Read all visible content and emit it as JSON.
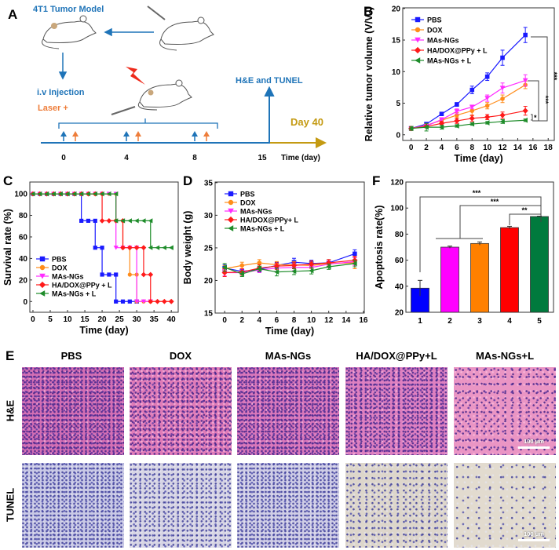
{
  "panel_labels": {
    "A": "A",
    "B": "B",
    "C": "C",
    "D": "D",
    "E": "E",
    "F": "F"
  },
  "panel_a": {
    "model_label": "4T1 Tumor Model",
    "injection_label": "i.v Injection",
    "laser_label": "Laser +",
    "endpoint_label": "H&E and TUNEL",
    "final_day_label": "Day 40",
    "time_ticks": [
      "0",
      "4",
      "8",
      "15"
    ],
    "time_axis_label": "Time (day)",
    "colors": {
      "blue": "#1f74b8",
      "orange": "#ee7d3a",
      "gold": "#c49a12"
    }
  },
  "chart_data": [
    {
      "id": "B",
      "type": "line",
      "xlabel": "Time (day)",
      "ylabel": "Relative tumor volume (V/V₀)",
      "xlim": [
        -1.1,
        18.8
      ],
      "ylim": [
        -0.9,
        20.1
      ],
      "xticks": [
        0,
        2,
        4,
        6,
        8,
        10,
        12,
        14,
        16,
        18
      ],
      "yticks": [
        0,
        5,
        10,
        15,
        20
      ],
      "x": [
        0,
        2,
        4,
        6,
        8,
        10,
        12,
        15
      ],
      "series": [
        {
          "name": "PBS",
          "color": "#1a1aff",
          "marker": "square",
          "values": [
            1,
            1.7,
            3.3,
            4.8,
            7.1,
            9.2,
            12.2,
            15.8
          ],
          "err": [
            0.3,
            0.2,
            0.2,
            0.3,
            0.6,
            0.6,
            1.2,
            1.2
          ]
        },
        {
          "name": "DOX",
          "color": "#ff8c1a",
          "marker": "circle",
          "values": [
            1,
            1.5,
            2.3,
            3.1,
            3.8,
            4.6,
            5.7,
            7.9
          ],
          "err": [
            0.3,
            0.2,
            0.3,
            0.4,
            0.8,
            0.5,
            0.6,
            0.6
          ]
        },
        {
          "name": "MAs-NGs",
          "color": "#ff2bff",
          "marker": "tri-down",
          "values": [
            1,
            1.4,
            2.4,
            3.7,
            4.4,
            5.8,
            7.4,
            8.6
          ],
          "err": [
            0.3,
            0.2,
            0.3,
            0.4,
            0.3,
            0.5,
            0.8,
            0.9
          ]
        },
        {
          "name": "HA/DOX@PPy + L",
          "color": "#ff1a1a",
          "marker": "diamond",
          "values": [
            1,
            1.3,
            1.8,
            2.2,
            2.6,
            2.8,
            3.1,
            3.8
          ],
          "err": [
            0.3,
            0.2,
            0.3,
            0.4,
            0.5,
            0.4,
            0.5,
            0.7
          ]
        },
        {
          "name": "MAs-NGs + L",
          "color": "#1e8c2a",
          "marker": "tri-left",
          "values": [
            1,
            1.2,
            1.2,
            1.4,
            1.7,
            1.9,
            2.1,
            2.3
          ],
          "err": [
            0.3,
            0.6,
            0.3,
            0.2,
            0.2,
            0.2,
            0.3,
            0.2
          ]
        }
      ],
      "legend": "top-left",
      "annotations": [
        "***",
        "***",
        "*"
      ]
    },
    {
      "id": "C",
      "type": "line",
      "style": "step",
      "xlabel": "Time (day)",
      "ylabel": "Survival rate (%)",
      "xlim": [
        -0.9,
        42
      ],
      "ylim": [
        -10,
        111
      ],
      "xticks": [
        0,
        5,
        10,
        15,
        20,
        25,
        30,
        35,
        40
      ],
      "yticks": [
        0,
        20,
        40,
        60,
        80,
        100
      ],
      "series": [
        {
          "name": "PBS",
          "color": "#1a1aff",
          "marker": "square",
          "x": [
            0,
            14,
            18,
            20,
            24,
            30
          ],
          "values": [
            100,
            75,
            50,
            25,
            0,
            0
          ]
        },
        {
          "name": "DOX",
          "color": "#ff8c1a",
          "marker": "circle",
          "x": [
            0,
            24,
            26,
            28,
            30,
            34
          ],
          "values": [
            100,
            75,
            50,
            25,
            0,
            0
          ]
        },
        {
          "name": "MAs-NGs",
          "color": "#ff2bff",
          "marker": "tri-down",
          "x": [
            0,
            24,
            30,
            34
          ],
          "values": [
            100,
            50,
            0,
            0
          ]
        },
        {
          "name": "HA/DOX@PPy + L",
          "color": "#ff1a1a",
          "marker": "diamond",
          "x": [
            0,
            20,
            26,
            32,
            34,
            40
          ],
          "values": [
            100,
            75,
            50,
            25,
            0,
            0
          ]
        },
        {
          "name": "MAs-NGs + L",
          "color": "#1e8c2a",
          "marker": "tri-left",
          "x": [
            0,
            24,
            34,
            40
          ],
          "values": [
            100,
            75,
            50,
            50
          ]
        }
      ],
      "legend": "bottom-left"
    },
    {
      "id": "D",
      "type": "line",
      "xlabel": "Time (day)",
      "ylabel": "Body weight (g)",
      "xlim": [
        -1.1,
        16.1
      ],
      "ylim": [
        15,
        35.1
      ],
      "xticks": [
        0,
        2,
        4,
        6,
        8,
        10,
        12,
        14,
        16
      ],
      "yticks": [
        15,
        20,
        25,
        30,
        35
      ],
      "x": [
        0,
        2,
        4,
        6,
        8,
        10,
        12,
        15
      ],
      "series": [
        {
          "name": "PBS",
          "color": "#1a1aff",
          "marker": "square",
          "values": [
            21.9,
            21.4,
            21.7,
            22.3,
            22.8,
            22.6,
            22.7,
            24.1
          ],
          "err": [
            0.5,
            0.4,
            0.4,
            0.5,
            0.6,
            0.5,
            0.5,
            0.6
          ]
        },
        {
          "name": "DOX",
          "color": "#ff8c1a",
          "marker": "circle",
          "values": [
            21.8,
            22.3,
            22.7,
            22.4,
            22.4,
            22.3,
            22.6,
            22.7
          ],
          "err": [
            0.5,
            0.5,
            0.5,
            0.5,
            0.5,
            0.5,
            0.6,
            0.9
          ]
        },
        {
          "name": "MAs-NGs",
          "color": "#ff2bff",
          "marker": "tri-down",
          "values": [
            21.2,
            21.2,
            21.6,
            21.9,
            22.0,
            22.0,
            22.5,
            22.9
          ],
          "err": [
            0.5,
            0.4,
            0.4,
            0.5,
            0.5,
            0.5,
            0.5,
            0.6
          ]
        },
        {
          "name": "HA/DOX@PPy+ L",
          "color": "#ff1a1a",
          "marker": "diamond",
          "values": [
            21.2,
            21.3,
            21.9,
            22.2,
            22.3,
            22.5,
            22.7,
            23.1
          ],
          "err": [
            0.6,
            0.5,
            0.5,
            0.5,
            0.5,
            0.5,
            0.5,
            0.6
          ]
        },
        {
          "name": "MAs-NGs + L",
          "color": "#1e8c2a",
          "marker": "tri-left",
          "values": [
            22.0,
            21.0,
            21.8,
            21.3,
            21.4,
            21.5,
            22.1,
            22.6
          ],
          "err": [
            0.6,
            0.4,
            0.4,
            0.6,
            0.5,
            0.5,
            0.4,
            0.5
          ]
        }
      ],
      "legend": "top-left"
    },
    {
      "id": "F",
      "type": "bar",
      "xlabel": "",
      "ylabel": "Apoptosis rate(%)",
      "ylim": [
        20,
        120
      ],
      "yticks": [
        20,
        40,
        60,
        80,
        100,
        120
      ],
      "categories": [
        "1",
        "2",
        "3",
        "4",
        "5"
      ],
      "values": [
        38.5,
        70.0,
        72.8,
        85.0,
        93.5
      ],
      "err": [
        6.0,
        0.8,
        1.2,
        1.0,
        0.3
      ],
      "colors": [
        "#0000ff",
        "#ff00ff",
        "#ff8000",
        "#ff0000",
        "#007a3d"
      ],
      "annotations": [
        "***",
        "***",
        "**"
      ]
    }
  ],
  "panel_e": {
    "columns": [
      "PBS",
      "DOX",
      "MAs-NGs",
      "HA/DOX@PPy+L",
      "MAs-NGs+L"
    ],
    "rows": [
      "H&E",
      "TUNEL"
    ],
    "scale_bar": "100 μm"
  }
}
